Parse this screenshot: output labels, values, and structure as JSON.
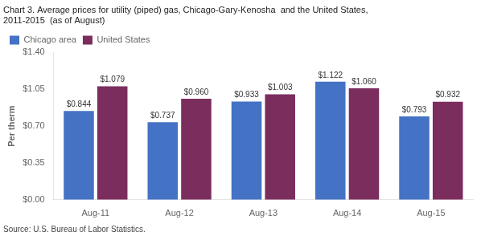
{
  "chart_data": {
    "type": "bar",
    "title": [
      "Chart 3. Average prices for utility (piped) gas, Chicago-Gary-Kenosha  and the United States,",
      "2011-2015  (as of August)"
    ],
    "ylabel": "Per therm",
    "source": "Source: U.S. Bureau of Labor Statistics.",
    "categories": [
      "Aug-11",
      "Aug-12",
      "Aug-13",
      "Aug-14",
      "Aug-15"
    ],
    "series": [
      {
        "name": "Chicago area",
        "color": "#4472C4",
        "values": [
          0.844,
          0.737,
          0.933,
          1.122,
          0.793
        ],
        "value_labels": [
          "$0.844",
          "$0.737",
          "$0.933",
          "$1.122",
          "$0.793"
        ]
      },
      {
        "name": "United States",
        "color": "#7B2D5E",
        "values": [
          1.079,
          0.96,
          1.003,
          1.06,
          0.932
        ],
        "value_labels": [
          "$1.079",
          "$0.960",
          "$1.003",
          "$1.060",
          "$0.932"
        ]
      }
    ],
    "ylim": [
      0.0,
      1.4
    ],
    "yticks": [
      {
        "value": 0.0,
        "label": "$0.00"
      },
      {
        "value": 0.35,
        "label": "$0.35"
      },
      {
        "value": 0.7,
        "label": "$0.70"
      },
      {
        "value": 1.05,
        "label": "$1.05"
      },
      {
        "value": 1.4,
        "label": "$1.40"
      }
    ],
    "grid": false,
    "legend": "upper left",
    "data_labels": true
  }
}
